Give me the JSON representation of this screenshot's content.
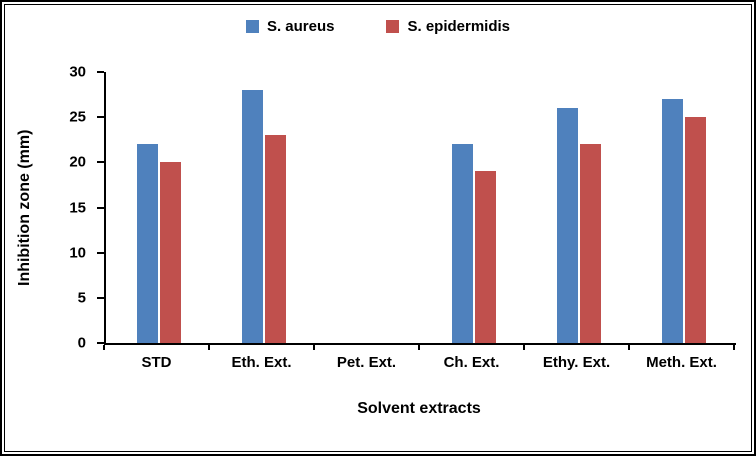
{
  "chart_data": {
    "type": "bar",
    "categories": [
      "STD",
      "Eth. Ext.",
      "Pet. Ext.",
      "Ch. Ext.",
      "Ethy. Ext.",
      "Meth. Ext."
    ],
    "series": [
      {
        "name": "S. aureus",
        "color": "#4F81BD",
        "values": [
          22,
          28,
          0,
          22,
          26,
          27
        ]
      },
      {
        "name": "S. epidermidis",
        "color": "#C0504D",
        "values": [
          20,
          23,
          0,
          19,
          22,
          25
        ]
      }
    ],
    "xlabel": "Solvent extracts",
    "ylabel": "Inhibition zone (mm)",
    "ylim": [
      0,
      30
    ],
    "yticks": [
      0,
      5,
      10,
      15,
      20,
      25,
      30
    ],
    "grid": false,
    "legend_position": "top",
    "axis_color": "#000000",
    "background_color": "#FFFFFF"
  }
}
